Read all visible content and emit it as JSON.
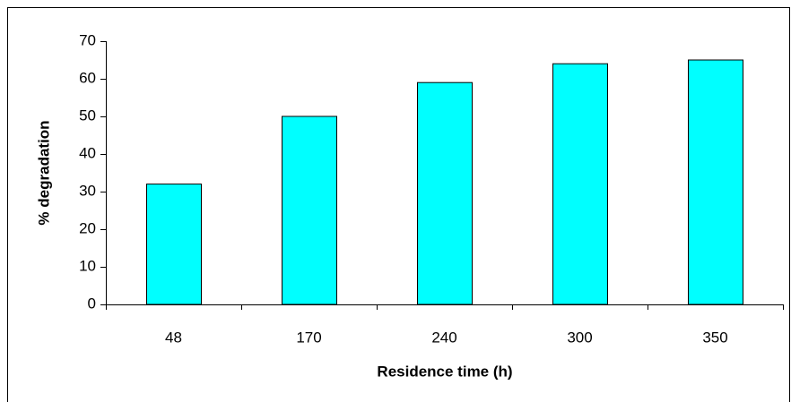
{
  "chart_data": {
    "type": "bar",
    "x_label": "Residence time (h)",
    "y_label": "% degradation",
    "categories": [
      "48",
      "170",
      "240",
      "300",
      "350"
    ],
    "values": [
      32,
      50,
      59,
      64,
      65
    ],
    "color": "#00ffff",
    "ylim": [
      0,
      70
    ],
    "yticks": [
      0,
      10,
      20,
      30,
      40,
      50,
      60,
      70
    ],
    "grid": false
  }
}
